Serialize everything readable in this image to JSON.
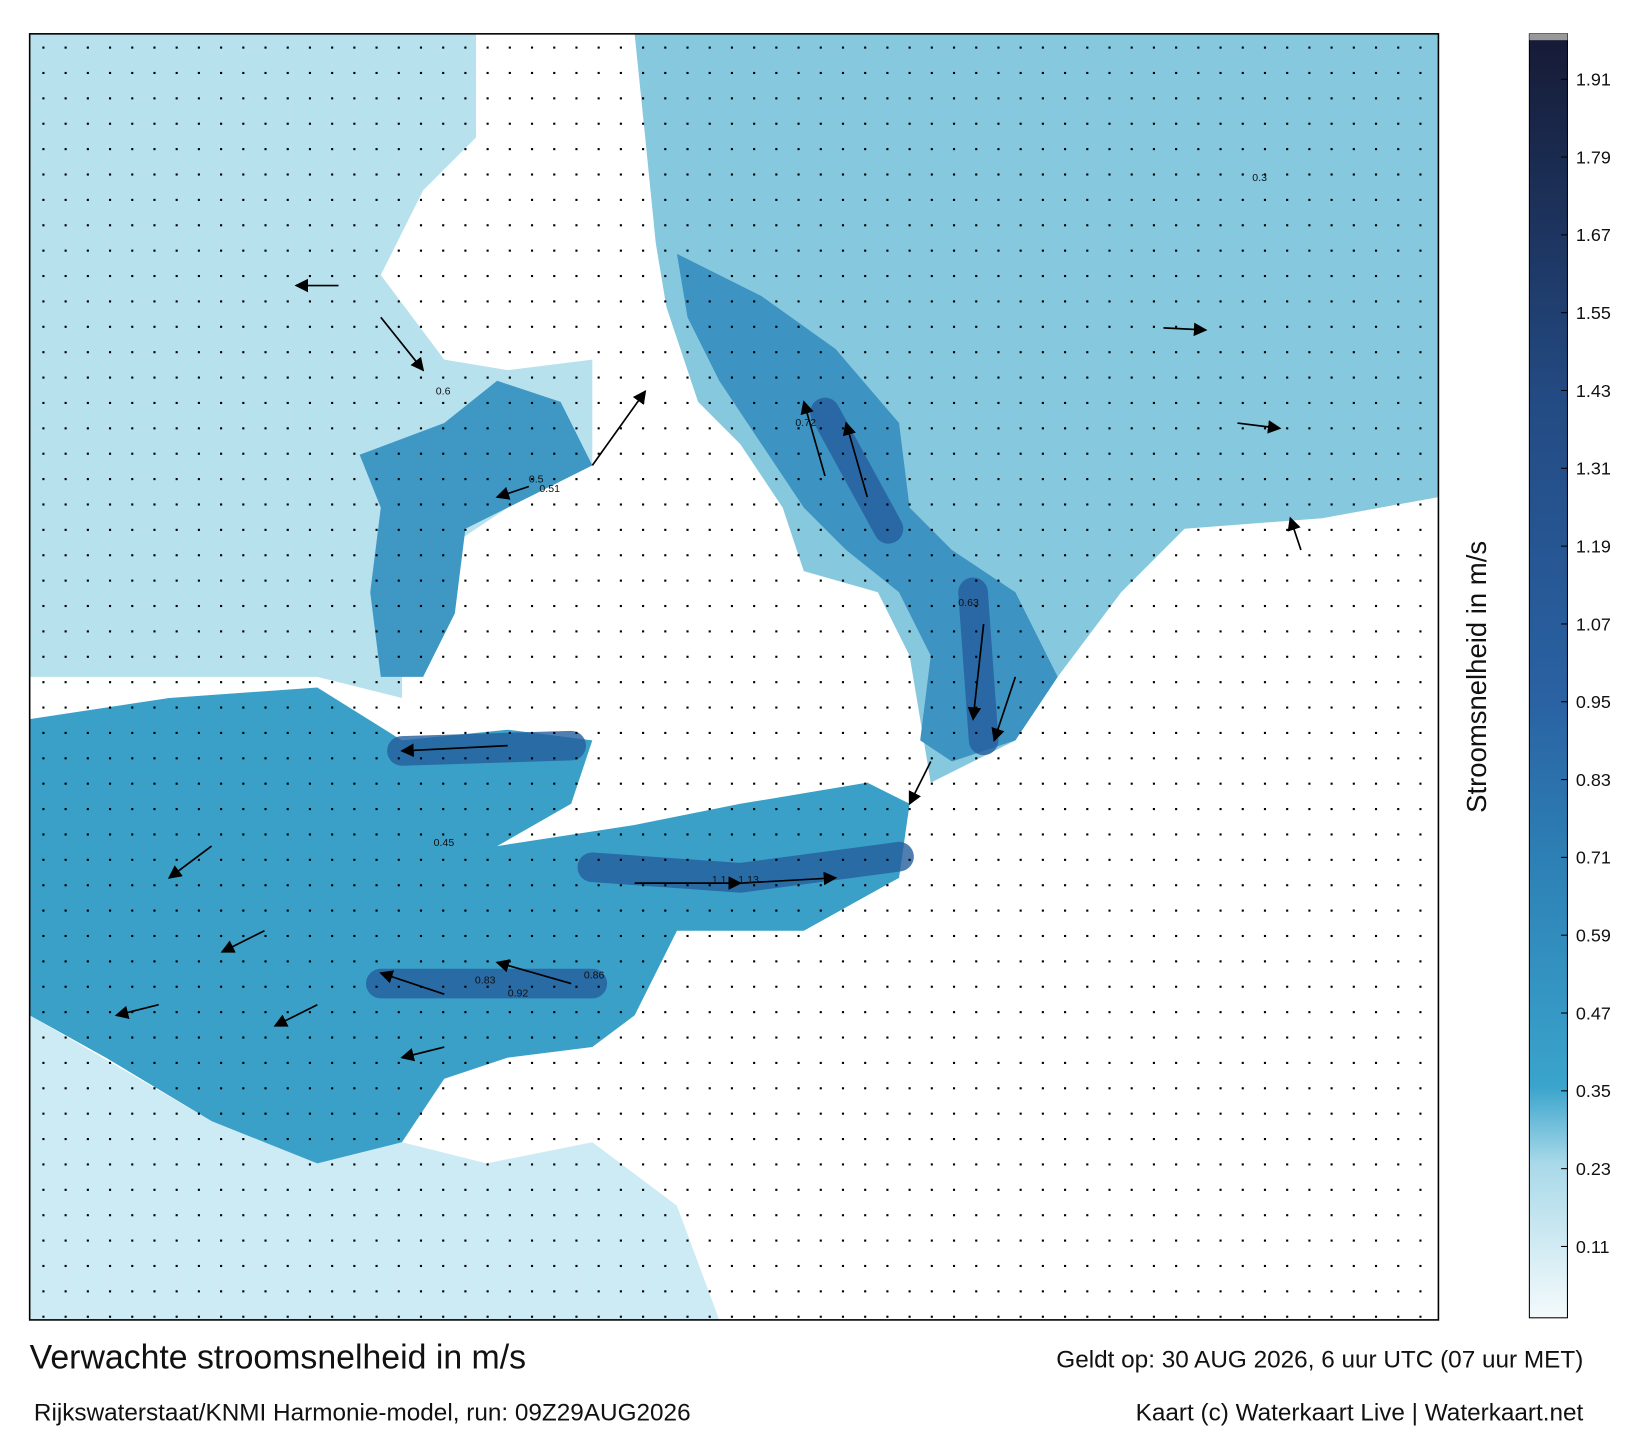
{
  "title": "Verwachte stroomsnelheid in m/s",
  "subtitle": "Rijkswaterstaat/KNMI Harmonie-model, run: 09Z29AUG2026",
  "valid": "Geldt op: 30 AUG 2026, 6 uur UTC (07 uur MET)",
  "credit": "Kaart (c) Waterkaart Live | Waterkaart.net",
  "colorbar": {
    "label": "Stroomsnelheid in m/s",
    "range": [
      0,
      1.98
    ],
    "ticks": [
      0.11,
      0.23,
      0.35,
      0.47,
      0.59,
      0.71,
      0.83,
      0.95,
      1.07,
      1.19,
      1.31,
      1.43,
      1.55,
      1.67,
      1.79,
      1.91
    ]
  },
  "map": {
    "labels": [
      "0.86",
      "1.1",
      "1.13",
      "0.83",
      "0.92",
      "0.72",
      "0.63",
      "0.5",
      "0.6",
      "0.3",
      "0.45",
      "0.51"
    ]
  }
}
